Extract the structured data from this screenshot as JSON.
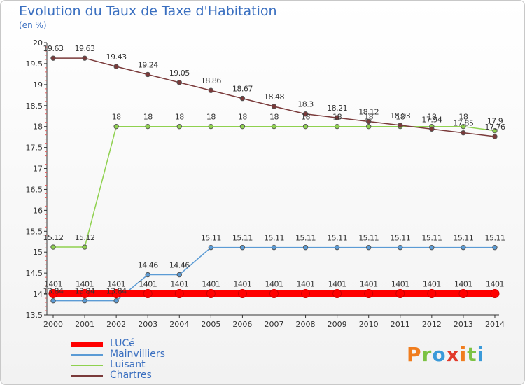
{
  "title": "Evolution du Taux de Taxe d'Habitation",
  "subtitle": "(en %)",
  "logo": {
    "text": "Proxiti",
    "letter_colors": [
      "#f07d1e",
      "#7cc243",
      "#3a9ad9",
      "#e23a2b",
      "#f07d1e",
      "#7cc243",
      "#3a9ad9"
    ]
  },
  "chart_data": {
    "type": "line",
    "x": [
      "2000",
      "2001",
      "2002",
      "2003",
      "2004",
      "2005",
      "2006",
      "2007",
      "2008",
      "2009",
      "2010",
      "2011",
      "2012",
      "2013",
      "2014"
    ],
    "ylim": [
      13.5,
      20
    ],
    "yticks": [
      "13.5",
      "14",
      "14.5",
      "15",
      "15.5",
      "16",
      "16.5",
      "17",
      "17.5",
      "18",
      "18.5",
      "19",
      "19.5",
      "20"
    ],
    "grid": false,
    "series": [
      {
        "name": "LUCé",
        "color": "#ff0000",
        "values": [
          14.01,
          14.01,
          14.01,
          14.01,
          14.01,
          14.01,
          14.01,
          14.01,
          14.01,
          14.01,
          14.01,
          14.01,
          14.01,
          14.01,
          14.01
        ],
        "labels": [
          "1401",
          "1401",
          "1401",
          "1401",
          "1401",
          "1401",
          "1401",
          "1401",
          "1401",
          "1401",
          "1401",
          "1401",
          "1401",
          "1401",
          "1401"
        ]
      },
      {
        "name": "Mainvilliers",
        "color": "#5b9bd5",
        "values": [
          13.84,
          13.84,
          13.84,
          14.46,
          14.46,
          15.11,
          15.11,
          15.11,
          15.11,
          15.11,
          15.11,
          15.11,
          15.11,
          15.11,
          15.11
        ],
        "labels": [
          "13.84",
          "13.84",
          "13.84",
          "14.46",
          "14.46",
          "15.11",
          "15.11",
          "15.11",
          "15.11",
          "15.11",
          "15.11",
          "15.11",
          "15.11",
          "15.11",
          "15.11"
        ]
      },
      {
        "name": "Luisant",
        "color": "#8fd14f",
        "values": [
          15.12,
          15.12,
          18,
          18,
          18,
          18,
          18,
          18,
          18,
          18,
          18,
          18,
          18,
          18,
          17.9
        ],
        "labels": [
          "15.12",
          "15.12",
          "18",
          "18",
          "18",
          "18",
          "18",
          "18",
          "18",
          "18",
          "18",
          "18",
          "18",
          "18",
          "17.9"
        ]
      },
      {
        "name": "Chartres",
        "color": "#7a3a3a",
        "values": [
          19.63,
          19.63,
          19.43,
          19.24,
          19.05,
          18.86,
          18.67,
          18.48,
          18.3,
          18.21,
          18.12,
          18.03,
          17.94,
          17.85,
          17.76
        ],
        "labels": [
          "19.63",
          "19.63",
          "19.43",
          "19.24",
          "19.05",
          "18.86",
          "18.67",
          "18.48",
          "18.3",
          "18.21",
          "18.12",
          "18.03",
          "17.94",
          "17.85",
          "17.76"
        ]
      }
    ]
  }
}
